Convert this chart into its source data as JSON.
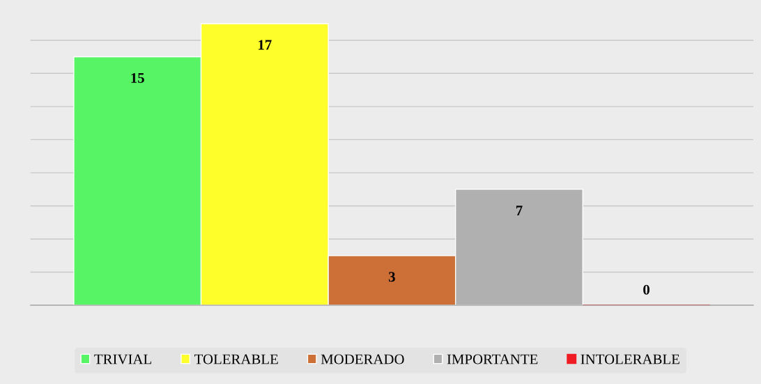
{
  "chart_data": {
    "type": "bar",
    "categories": [
      null
    ],
    "series": [
      {
        "name": "TRIVIAL",
        "color": "#57f566",
        "values": [
          15
        ]
      },
      {
        "name": "TOLERABLE",
        "color": "#fefe2a",
        "values": [
          17
        ]
      },
      {
        "name": "MODERADO",
        "color": "#cd7037",
        "values": [
          3
        ]
      },
      {
        "name": "IMPORTANTE",
        "color": "#b0b0b0",
        "values": [
          7
        ]
      },
      {
        "name": "INTOLERABLE",
        "color": "#f01c24",
        "values": [
          0
        ]
      }
    ],
    "yticks": [
      {
        "value": 0,
        "label": null
      },
      {
        "value": 2,
        "label": null
      },
      {
        "value": 4,
        "label": null
      },
      {
        "value": 6,
        "label": null
      },
      {
        "value": 8,
        "label": null
      },
      {
        "value": 10,
        "label": null
      },
      {
        "value": 12,
        "label": null
      },
      {
        "value": 14,
        "label": null
      },
      {
        "value": 16,
        "label": null
      }
    ],
    "grid": "y",
    "legend": "bottom",
    "data_labels": true
  }
}
